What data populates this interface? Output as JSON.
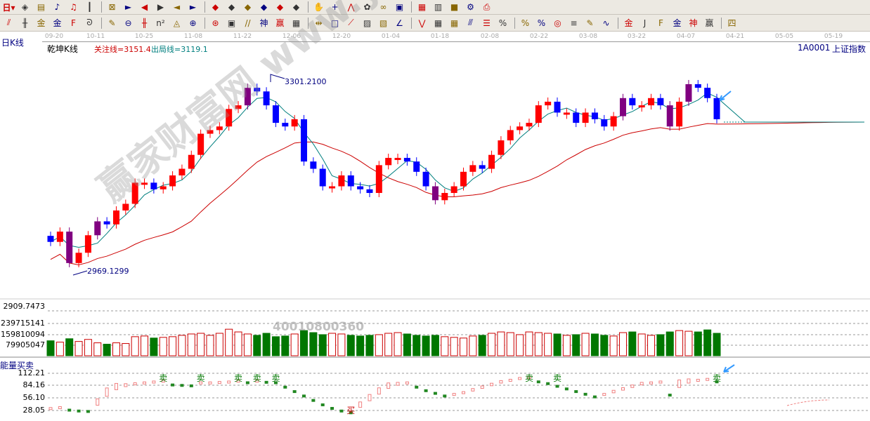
{
  "toolbar1": {
    "icons": [
      "period-dropdown",
      "window-icon",
      "doc-icon",
      "kline-icon",
      "kline2-icon",
      "cursor-dropdown",
      "stock-icon",
      "flag-icon",
      "first-icon",
      "last-icon",
      "left-icon",
      "right-icon",
      "zoom-left",
      "zoom-right",
      "expand",
      "shrink",
      "expand-all",
      "shrink-all",
      "hand-icon",
      "crosshair-icon",
      "line-icon",
      "node-icon",
      "formula-icon",
      "calendar-icon",
      "calculator-icon",
      "notebook-icon",
      "save-icon",
      "network-icon",
      "print-icon"
    ],
    "period_label": "日"
  },
  "toolbar2": {
    "icons": [
      "pen-icon",
      "lines-icon",
      "gold-icon",
      "gold2-icon",
      "f-icon",
      "spiral-icon",
      "pen2-icon",
      "circle-icon",
      "grid-icon",
      "n2-icon",
      "triangle-icon",
      "target-icon",
      "target2-icon",
      "box-icon",
      "parallel-icon",
      "god-icon",
      "win-icon",
      "ruler-icon",
      "arrows-icon",
      "rect-icon",
      "fan-icon",
      "fan2-icon",
      "fan3-icon",
      "angle-icon",
      "wave-icon",
      "grid2-icon",
      "grid3-icon",
      "lines2-icon",
      "table-icon",
      "percent-slash-icon",
      "percent-icon",
      "percent-lines-icon",
      "coin-icon",
      "gold-lines-icon",
      "pen3-icon",
      "sine-icon",
      "gold3-icon",
      "j-icon",
      "f2-icon",
      "gold4-icon",
      "god2-icon",
      "win2-icon",
      "four-icon"
    ]
  },
  "dates": [
    "09-20",
    "10-11",
    "10-25",
    "11-08",
    "11-22",
    "12-06",
    "12-20",
    "01-04",
    "01-18",
    "02-08",
    "02-22",
    "03-08",
    "03-22",
    "04-07",
    "04-21",
    "05-05",
    "05-19"
  ],
  "header": {
    "period": "日K线",
    "indicator": "乾坤K线",
    "focus_line": "关注线=3151.4",
    "exit_line": "出局线=3119.1",
    "code": "1A0001",
    "name": "上证指数"
  },
  "annotations": {
    "high": "3301.2100",
    "low": "2969.1299"
  },
  "watermark": {
    "text": "赢家财富网 www.yingjia360.com",
    "phone": "4001080036​0"
  },
  "volume_panel": {
    "ticks": [
      "2909.7473",
      "239715141",
      "159810094",
      "79905047"
    ]
  },
  "energy_panel": {
    "title": "能量买卖",
    "ticks": [
      "112.21",
      "84.16",
      "56.10",
      "28.05"
    ],
    "sell_label": "卖",
    "buy_label": "买"
  },
  "colors": {
    "up": "#ff0000",
    "down": "#0000ff",
    "reversal": "#800080",
    "vol_up": "#cc0000",
    "vol_down": "#007700",
    "ma_long": "#cc0000",
    "ma_short": "#007f7f",
    "arrow": "#3399ff"
  },
  "chart_data": {
    "type": "candlestick",
    "y_range": [
      2969.13,
      3301.21
    ],
    "closes": [
      3024,
      3041,
      2989,
      3006,
      3035,
      3058,
      3053,
      3076,
      3087,
      3122,
      3122,
      3111,
      3116,
      3134,
      3145,
      3168,
      3203,
      3209,
      3215,
      3244,
      3250,
      3279,
      3273,
      3250,
      3221,
      3215,
      3227,
      3157,
      3145,
      3116,
      3116,
      3134,
      3116,
      3111,
      3105,
      3151,
      3163,
      3163,
      3157,
      3140,
      3116,
      3093,
      3105,
      3116,
      3140,
      3151,
      3145,
      3168,
      3192,
      3209,
      3215,
      3221,
      3250,
      3256,
      3238,
      3238,
      3221,
      3238,
      3227,
      3215,
      3232,
      3262,
      3250,
      3250,
      3262,
      3250,
      3215,
      3256,
      3285,
      3279,
      3262,
      3227
    ],
    "volumes": [
      110,
      100,
      125,
      105,
      120,
      95,
      85,
      95,
      90,
      140,
      145,
      130,
      135,
      140,
      150,
      160,
      165,
      150,
      165,
      195,
      175,
      160,
      150,
      165,
      140,
      145,
      160,
      185,
      170,
      155,
      165,
      160,
      150,
      145,
      150,
      155,
      165,
      170,
      160,
      150,
      145,
      150,
      140,
      135,
      130,
      145,
      150,
      165,
      175,
      170,
      155,
      175,
      170,
      165,
      160,
      150,
      155,
      165,
      160,
      150,
      145,
      170,
      175,
      160,
      150,
      155,
      175,
      185,
      180,
      175,
      190,
      165
    ],
    "energy": [
      30,
      32,
      28,
      26,
      25,
      40,
      60,
      75,
      82,
      86,
      88,
      90,
      92,
      85,
      84,
      83,
      88,
      88,
      89,
      90,
      92,
      90,
      92,
      91,
      90,
      80,
      70,
      60,
      50,
      40,
      32,
      26,
      22,
      35,
      50,
      65,
      78,
      85,
      88,
      80,
      72,
      66,
      60,
      62,
      66,
      72,
      78,
      84,
      90,
      94,
      98,
      100,
      92,
      88,
      82,
      76,
      70,
      64,
      58,
      62,
      68,
      74,
      80,
      86,
      88,
      90,
      62,
      80,
      90,
      94,
      96,
      92
    ],
    "sell_signals": [
      12,
      16,
      20,
      22,
      24,
      51,
      54,
      71
    ],
    "buy_signals": [
      32
    ]
  }
}
